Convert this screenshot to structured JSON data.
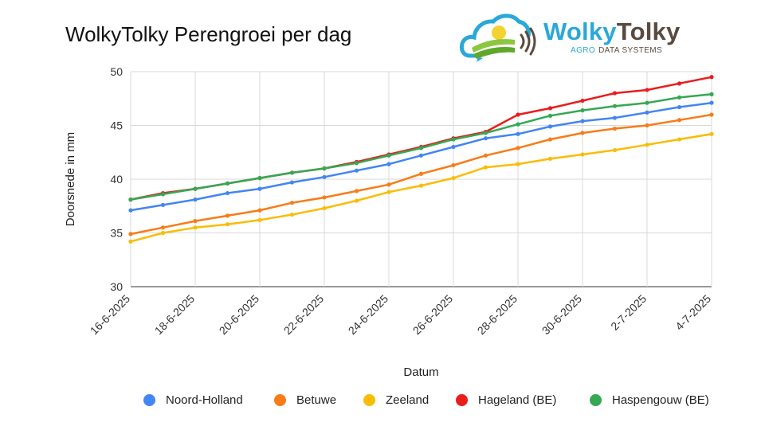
{
  "title": "WolkyTolky Perengroei per dag",
  "logo": {
    "name_part1": "Wolky",
    "name_part2": "Tolky",
    "tagline_agro": "AGRO",
    "tagline_rest": "DATA SYSTEMS",
    "colors": {
      "blue": "#2aa8d8",
      "brown": "#5a4a3e",
      "green": "#8dc63f",
      "yellow": "#f3d330"
    }
  },
  "chart_data": {
    "type": "line",
    "title": "WolkyTolky Perengroei per dag",
    "xlabel": "Datum",
    "ylabel": "Doorsnede in mm",
    "ylim": [
      30,
      50
    ],
    "yticks": [
      30,
      35,
      40,
      45,
      50
    ],
    "grid": true,
    "legend_position": "bottom",
    "x": [
      "16-6-2025",
      "17-6-2025",
      "18-6-2025",
      "19-6-2025",
      "20-6-2025",
      "21-6-2025",
      "22-6-2025",
      "23-6-2025",
      "24-6-2025",
      "25-6-2025",
      "26-6-2025",
      "27-6-2025",
      "28-6-2025",
      "29-6-2025",
      "30-6-2025",
      "1-7-2025",
      "2-7-2025",
      "3-7-2025",
      "4-7-2025"
    ],
    "xtick_labels": [
      "16-6-2025",
      "18-6-2025",
      "20-6-2025",
      "22-6-2025",
      "24-6-2025",
      "26-6-2025",
      "28-6-2025",
      "30-6-2025",
      "2-7-2025",
      "4-7-2025"
    ],
    "series": [
      {
        "name": "Noord-Holland",
        "color": "#4285f4",
        "values": [
          37.1,
          37.6,
          38.1,
          38.7,
          39.1,
          39.7,
          40.2,
          40.8,
          41.4,
          42.2,
          43.0,
          43.8,
          44.2,
          44.9,
          45.4,
          45.7,
          46.2,
          46.7,
          47.1
        ]
      },
      {
        "name": "Betuwe",
        "color": "#fa7b17",
        "values": [
          34.9,
          35.5,
          36.1,
          36.6,
          37.1,
          37.8,
          38.3,
          38.9,
          39.5,
          40.5,
          41.3,
          42.2,
          42.9,
          43.7,
          44.3,
          44.7,
          45.0,
          45.5,
          46.0
        ]
      },
      {
        "name": "Zeeland",
        "color": "#fbbc04",
        "values": [
          34.2,
          35.0,
          35.5,
          35.8,
          36.2,
          36.7,
          37.3,
          38.0,
          38.8,
          39.4,
          40.1,
          41.1,
          41.4,
          41.9,
          42.3,
          42.7,
          43.2,
          43.7,
          44.2
        ]
      },
      {
        "name": "Hageland (BE)",
        "color": "#ea1c1c",
        "values": [
          38.1,
          38.7,
          39.1,
          39.6,
          40.1,
          40.6,
          41.0,
          41.6,
          42.3,
          43.0,
          43.8,
          44.4,
          46.0,
          46.6,
          47.3,
          48.0,
          48.3,
          48.9,
          49.5
        ]
      },
      {
        "name": "Haspengouw (BE)",
        "color": "#34a853",
        "values": [
          38.1,
          38.6,
          39.1,
          39.6,
          40.1,
          40.6,
          41.0,
          41.5,
          42.2,
          42.9,
          43.7,
          44.3,
          45.1,
          45.9,
          46.4,
          46.8,
          47.1,
          47.6,
          47.9
        ]
      }
    ]
  }
}
